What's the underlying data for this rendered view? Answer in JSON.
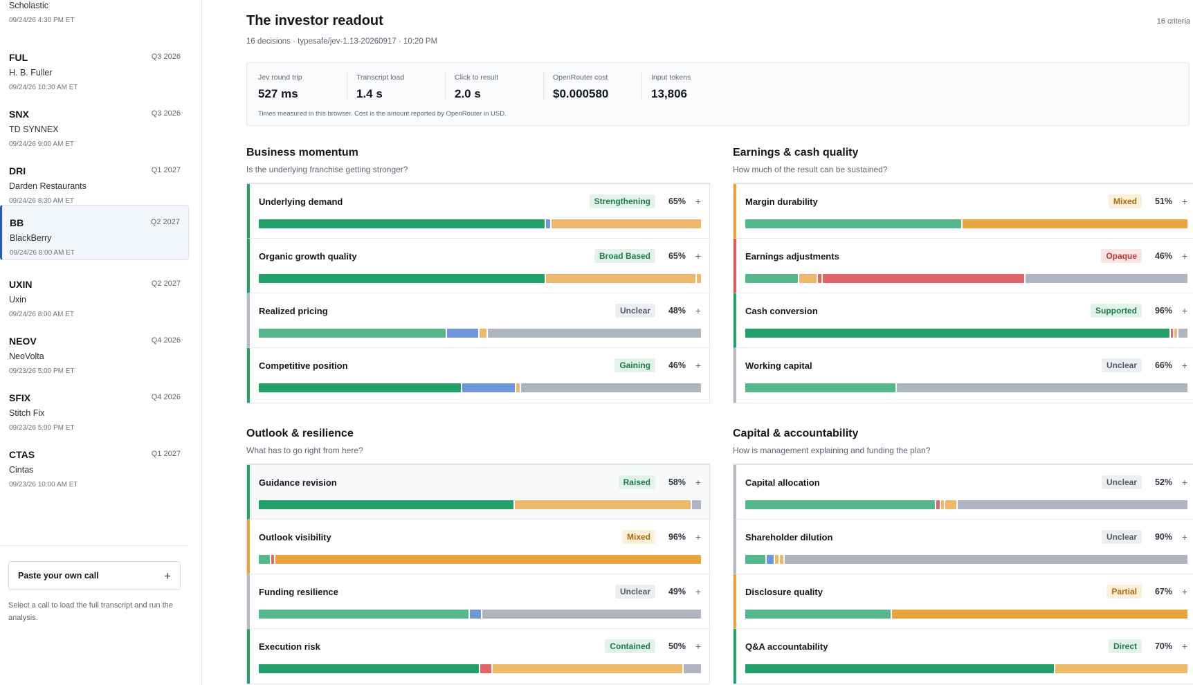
{
  "sidebar": {
    "calls": [
      {
        "ticker": "",
        "quarter": "",
        "company": "Scholastic",
        "time": "09/24/26 4:30 PM ET",
        "partial": true
      },
      {
        "ticker": "FUL",
        "quarter": "Q3 2026",
        "company": "H. B. Fuller",
        "time": "09/24/26 10:30 AM ET"
      },
      {
        "ticker": "SNX",
        "quarter": "Q3 2026",
        "company": "TD SYNNEX",
        "time": "09/24/26 9:00 AM ET"
      },
      {
        "ticker": "DRI",
        "quarter": "Q1 2027",
        "company": "Darden Restaurants",
        "time": "09/24/26 8:30 AM ET"
      },
      {
        "ticker": "BB",
        "quarter": "Q2 2027",
        "company": "BlackBerry",
        "time": "09/24/26 8:00 AM ET",
        "selected": true
      },
      {
        "ticker": "UXIN",
        "quarter": "Q2 2027",
        "company": "Uxin",
        "time": "09/24/26 8:00 AM ET"
      },
      {
        "ticker": "NEOV",
        "quarter": "Q4 2026",
        "company": "NeoVolta",
        "time": "09/23/26 5:00 PM ET"
      },
      {
        "ticker": "SFIX",
        "quarter": "Q4 2026",
        "company": "Stitch Fix",
        "time": "09/23/26 5:00 PM ET"
      },
      {
        "ticker": "CTAS",
        "quarter": "Q1 2027",
        "company": "Cintas",
        "time": "09/23/26 10:00 AM ET"
      }
    ],
    "paste_label": "Paste your own call",
    "paste_icon": "plus-icon",
    "help_text": "Select a call to load the full transcript and run the analysis."
  },
  "header": {
    "title": "The investor readout",
    "subtitle": "16 decisions · typesafe/jev-1.13-20260917 · 10:20 PM",
    "criteria_count": "16 criteria"
  },
  "metrics": {
    "items": [
      {
        "label": "Jev round trip",
        "value": "527 ms"
      },
      {
        "label": "Transcript load",
        "value": "1.4 s"
      },
      {
        "label": "Click to result",
        "value": "2.0 s"
      },
      {
        "label": "OpenRouter cost",
        "value": "$0.000580"
      },
      {
        "label": "Input tokens",
        "value": "13,806"
      }
    ],
    "note": "Times measured in this browser. Cost is the amount reported by OpenRouter in USD."
  },
  "colors": {
    "green": "#21a06a",
    "light_green": "#55b88c",
    "amber": "#e9a43c",
    "light_amber": "#ecb96a",
    "red": "#e06468",
    "blue": "#6d97d8",
    "grey": "#aeb5c0",
    "selected_accent": "#1e5bbf"
  },
  "sections": [
    {
      "title": "Business momentum",
      "subtitle": "Is the underlying franchise getting stronger?",
      "criteria": [
        {
          "name": "Underlying demand",
          "badge": "Strengthening",
          "tone": "green",
          "pct": "65%",
          "expand": "+",
          "bar": [
            {
              "c": "green",
              "v": 65
            },
            {
              "c": "blue",
              "v": 1
            },
            {
              "c": "light_amber",
              "v": 34
            }
          ]
        },
        {
          "name": "Organic growth quality",
          "badge": "Broad Based",
          "tone": "green",
          "pct": "65%",
          "expand": "+",
          "bar": [
            {
              "c": "green",
              "v": 65
            },
            {
              "c": "light_amber",
              "v": 34
            },
            {
              "c": "light_amber",
              "v": 1
            }
          ]
        },
        {
          "name": "Realized pricing",
          "badge": "Unclear",
          "tone": "grey",
          "pct": "48%",
          "expand": "+",
          "bar": [
            {
              "c": "light_green",
              "v": 42
            },
            {
              "c": "blue",
              "v": 7
            },
            {
              "c": "light_amber",
              "v": 1.5
            },
            {
              "c": "grey",
              "v": 48
            }
          ]
        },
        {
          "name": "Competitive position",
          "badge": "Gaining",
          "tone": "green",
          "pct": "46%",
          "expand": "+",
          "bar": [
            {
              "c": "green",
              "v": 46
            },
            {
              "c": "blue",
              "v": 12
            },
            {
              "c": "light_amber",
              "v": 0.8
            },
            {
              "c": "grey",
              "v": 41
            }
          ]
        }
      ]
    },
    {
      "title": "Earnings & cash quality",
      "subtitle": "How much of the result can be sustained?",
      "criteria": [
        {
          "name": "Margin durability",
          "badge": "Mixed",
          "tone": "amber",
          "pct": "51%",
          "expand": "+",
          "bar": [
            {
              "c": "light_green",
              "v": 49
            },
            {
              "c": "amber",
              "v": 51
            }
          ]
        },
        {
          "name": "Earnings adjustments",
          "badge": "Opaque",
          "tone": "red",
          "pct": "46%",
          "expand": "+",
          "bar": [
            {
              "c": "light_green",
              "v": 12
            },
            {
              "c": "light_amber",
              "v": 4
            },
            {
              "c": "red",
              "v": 0.8
            },
            {
              "c": "red",
              "v": 46
            },
            {
              "c": "grey",
              "v": 37
            }
          ]
        },
        {
          "name": "Cash conversion",
          "badge": "Supported",
          "tone": "green",
          "pct": "96%",
          "expand": "+",
          "bar": [
            {
              "c": "green",
              "v": 96
            },
            {
              "c": "red",
              "v": 0.6
            },
            {
              "c": "light_amber",
              "v": 0.6
            },
            {
              "c": "grey",
              "v": 2
            }
          ]
        },
        {
          "name": "Working capital",
          "badge": "Unclear",
          "tone": "grey",
          "pct": "66%",
          "expand": "+",
          "bar": [
            {
              "c": "light_green",
              "v": 34
            },
            {
              "c": "grey",
              "v": 66
            }
          ]
        }
      ]
    },
    {
      "title": "Outlook & resilience",
      "subtitle": "What has to go right from here?",
      "criteria": [
        {
          "name": "Guidance revision",
          "badge": "Raised",
          "tone": "green",
          "pct": "58%",
          "expand": "+",
          "highlight": true,
          "bar": [
            {
              "c": "green",
              "v": 58
            },
            {
              "c": "light_amber",
              "v": 40
            },
            {
              "c": "grey",
              "v": 2
            }
          ]
        },
        {
          "name": "Outlook visibility",
          "badge": "Mixed",
          "tone": "amber",
          "pct": "96%",
          "expand": "+",
          "bar": [
            {
              "c": "light_green",
              "v": 2.5
            },
            {
              "c": "red",
              "v": 0.7
            },
            {
              "c": "amber",
              "v": 96
            }
          ]
        },
        {
          "name": "Funding resilience",
          "badge": "Unclear",
          "tone": "grey",
          "pct": "49%",
          "expand": "+",
          "bar": [
            {
              "c": "light_green",
              "v": 47
            },
            {
              "c": "blue",
              "v": 2.5
            },
            {
              "c": "grey",
              "v": 49
            }
          ]
        },
        {
          "name": "Execution risk",
          "badge": "Contained",
          "tone": "green",
          "pct": "50%",
          "expand": "+",
          "bar": [
            {
              "c": "green",
              "v": 50
            },
            {
              "c": "red",
              "v": 2.5
            },
            {
              "c": "light_amber",
              "v": 43
            },
            {
              "c": "grey",
              "v": 4
            }
          ]
        }
      ]
    },
    {
      "title": "Capital & accountability",
      "subtitle": "How is management explaining and funding the plan?",
      "criteria": [
        {
          "name": "Capital allocation",
          "badge": "Unclear",
          "tone": "grey",
          "pct": "52%",
          "expand": "+",
          "bar": [
            {
              "c": "light_green",
              "v": 43
            },
            {
              "c": "red",
              "v": 0.7
            },
            {
              "c": "light_amber",
              "v": 0.7
            },
            {
              "c": "light_amber",
              "v": 2.5
            },
            {
              "c": "grey",
              "v": 52
            }
          ]
        },
        {
          "name": "Shareholder dilution",
          "badge": "Unclear",
          "tone": "grey",
          "pct": "90%",
          "expand": "+",
          "bar": [
            {
              "c": "light_green",
              "v": 4.5
            },
            {
              "c": "blue",
              "v": 1.5
            },
            {
              "c": "light_amber",
              "v": 0.8
            },
            {
              "c": "light_amber",
              "v": 0.8
            },
            {
              "c": "grey",
              "v": 90
            }
          ]
        },
        {
          "name": "Disclosure quality",
          "badge": "Partial",
          "tone": "amber",
          "pct": "67%",
          "expand": "+",
          "bar": [
            {
              "c": "light_green",
              "v": 33
            },
            {
              "c": "amber",
              "v": 67
            }
          ]
        },
        {
          "name": "Q&A accountability",
          "badge": "Direct",
          "tone": "green",
          "pct": "70%",
          "expand": "+",
          "bar": [
            {
              "c": "green",
              "v": 70
            },
            {
              "c": "light_amber",
              "v": 30
            }
          ]
        }
      ]
    }
  ]
}
